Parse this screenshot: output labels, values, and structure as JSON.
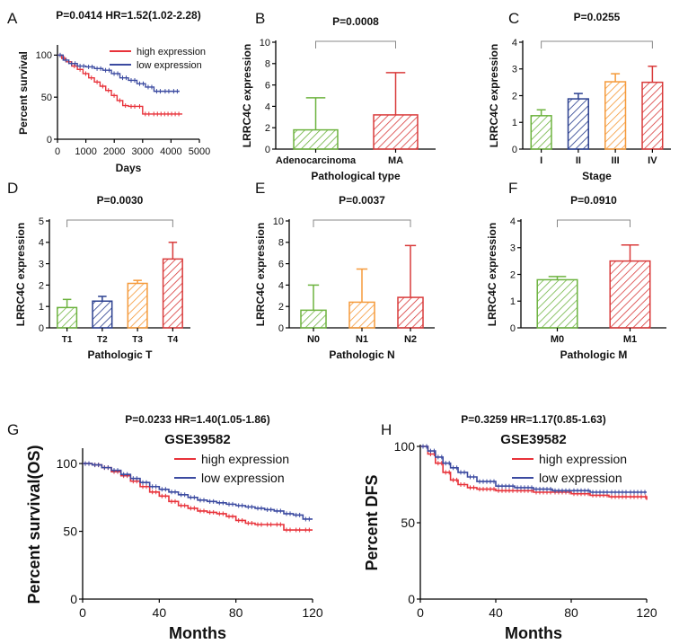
{
  "colors": {
    "green": "#6db33f",
    "blue": "#2a3f8f",
    "orange": "#f59a3a",
    "red": "#d93b3b",
    "survival_red": "#e8323a",
    "survival_blue": "#3b4aa0"
  },
  "chart_data": [
    {
      "panel": "A",
      "type": "line",
      "title": "P=0.0414  HR=1.52(1.02-2.28)",
      "xlabel": "Days",
      "ylabel": "Percent survival",
      "xlim": [
        0,
        5000
      ],
      "ylim": [
        0,
        110
      ],
      "xticks": [
        0,
        1000,
        2000,
        3000,
        4000,
        5000
      ],
      "yticks": [
        0,
        50,
        100
      ],
      "legend": "top-right",
      "series": [
        {
          "name": "high expression",
          "color": "#e8323a",
          "x": [
            0,
            150,
            300,
            500,
            700,
            900,
            1100,
            1300,
            1500,
            1700,
            1900,
            2100,
            2300,
            2500,
            2800,
            3000,
            3300,
            3800,
            4400
          ],
          "y": [
            100,
            96,
            92,
            87,
            83,
            78,
            73,
            68,
            63,
            58,
            52,
            46,
            40,
            39,
            39,
            30,
            30,
            30,
            30
          ]
        },
        {
          "name": "low expression",
          "color": "#3b4aa0",
          "x": [
            0,
            200,
            400,
            700,
            1000,
            1300,
            1600,
            1900,
            2200,
            2500,
            2800,
            3100,
            3400,
            3700,
            4000,
            4300
          ],
          "y": [
            100,
            94,
            90,
            87,
            86,
            84,
            82,
            78,
            73,
            70,
            66,
            62,
            57,
            57,
            57,
            57
          ]
        }
      ]
    },
    {
      "panel": "B",
      "type": "bar",
      "title": "P=0.0008",
      "xlabel": "Pathological type",
      "ylabel": "LRRC4C expression",
      "ylim": [
        0,
        10
      ],
      "yticks": [
        0,
        2,
        4,
        6,
        8,
        10
      ],
      "categories": [
        "Adenocarcinoma",
        "MA"
      ],
      "values": [
        1.8,
        3.2
      ],
      "errors": [
        3.0,
        3.95
      ],
      "colors": [
        "#6db33f",
        "#d93b3b"
      ],
      "bracket": [
        0,
        1
      ]
    },
    {
      "panel": "C",
      "type": "bar",
      "title": "P=0.0255",
      "xlabel": "Stage",
      "ylabel": "LRRC4C expression",
      "ylim": [
        0,
        4
      ],
      "yticks": [
        0,
        1,
        2,
        3,
        4
      ],
      "categories": [
        "I",
        "II",
        "III",
        "IV"
      ],
      "values": [
        1.25,
        1.88,
        2.52,
        2.5
      ],
      "errors": [
        0.22,
        0.2,
        0.3,
        0.6
      ],
      "colors": [
        "#6db33f",
        "#2a3f8f",
        "#f59a3a",
        "#d93b3b"
      ],
      "bracket": [
        0,
        3
      ]
    },
    {
      "panel": "D",
      "type": "bar",
      "title": "P=0.0030",
      "xlabel": "Pathologic T",
      "ylabel": "LRRC4C expression",
      "ylim": [
        0,
        5
      ],
      "yticks": [
        0,
        1,
        2,
        3,
        4,
        5
      ],
      "categories": [
        "T1",
        "T2",
        "T3",
        "T4"
      ],
      "values": [
        0.95,
        1.25,
        2.08,
        3.22
      ],
      "errors": [
        0.38,
        0.22,
        0.14,
        0.78
      ],
      "colors": [
        "#6db33f",
        "#2a3f8f",
        "#f59a3a",
        "#d93b3b"
      ],
      "bracket": [
        0,
        3
      ]
    },
    {
      "panel": "E",
      "type": "bar",
      "title": "P=0.0037",
      "xlabel": "Pathologic N",
      "ylabel": "LRRC4C expression",
      "ylim": [
        0,
        10
      ],
      "yticks": [
        0,
        2,
        4,
        6,
        8,
        10
      ],
      "categories": [
        "N0",
        "N1",
        "N2"
      ],
      "values": [
        1.65,
        2.4,
        2.85
      ],
      "errors": [
        2.35,
        3.1,
        4.85
      ],
      "colors": [
        "#6db33f",
        "#f59a3a",
        "#d93b3b"
      ],
      "bracket": [
        0,
        2
      ]
    },
    {
      "panel": "F",
      "type": "bar",
      "title": "P=0.0910",
      "xlabel": "Pathologic M",
      "ylabel": "LRRC4C expression",
      "ylim": [
        0,
        4
      ],
      "yticks": [
        0,
        1,
        2,
        3,
        4
      ],
      "categories": [
        "M0",
        "M1"
      ],
      "values": [
        1.8,
        2.5
      ],
      "errors": [
        0.12,
        0.6
      ],
      "colors": [
        "#6db33f",
        "#d93b3b"
      ],
      "bracket": [
        0,
        1
      ]
    },
    {
      "panel": "G",
      "type": "line",
      "title": "P=0.0233  HR=1.40(1.05-1.86)",
      "subtitle": "GSE39582",
      "xlabel": "Months",
      "ylabel": "Percent survival(OS)",
      "xlim": [
        0,
        120
      ],
      "ylim": [
        0,
        110
      ],
      "xticks": [
        0,
        40,
        80,
        120
      ],
      "yticks": [
        0,
        50,
        100
      ],
      "legend": "top-right",
      "series": [
        {
          "name": "high expression",
          "color": "#e8323a",
          "x": [
            0,
            5,
            10,
            15,
            20,
            25,
            30,
            35,
            40,
            45,
            50,
            55,
            60,
            65,
            70,
            75,
            80,
            85,
            90,
            95,
            100,
            105,
            110,
            115,
            120
          ],
          "y": [
            100,
            99,
            97,
            94,
            91,
            87,
            83,
            79,
            76,
            72,
            69,
            67,
            65,
            64,
            63,
            61,
            58,
            56,
            55,
            55,
            55,
            51,
            51,
            51,
            51
          ]
        },
        {
          "name": "low expression",
          "color": "#3b4aa0",
          "x": [
            0,
            5,
            10,
            15,
            20,
            25,
            30,
            35,
            40,
            45,
            50,
            55,
            60,
            65,
            70,
            75,
            80,
            85,
            90,
            95,
            100,
            105,
            110,
            115,
            120
          ],
          "y": [
            100,
            99,
            97,
            95,
            92,
            89,
            86,
            83,
            81,
            79,
            77,
            75,
            73,
            72,
            71,
            70,
            69,
            68,
            67,
            66,
            65,
            63,
            62,
            59,
            59
          ]
        }
      ]
    },
    {
      "panel": "H",
      "type": "line",
      "title": "P=0.3259  HR=1.17(0.85-1.63)",
      "subtitle": "GSE39582",
      "xlabel": "Months",
      "ylabel": "Percent DFS",
      "xlim": [
        0,
        120
      ],
      "ylim": [
        0,
        100
      ],
      "xticks": [
        0,
        40,
        80,
        120
      ],
      "yticks": [
        0,
        50,
        100
      ],
      "legend": "top-right",
      "series": [
        {
          "name": "high expression",
          "color": "#e8323a",
          "x": [
            0,
            4,
            8,
            12,
            16,
            20,
            25,
            30,
            40,
            50,
            60,
            70,
            80,
            90,
            100,
            110,
            118,
            120
          ],
          "y": [
            100,
            95,
            89,
            83,
            78,
            75,
            73,
            72,
            71,
            71,
            70,
            70,
            69,
            68,
            67,
            67,
            67,
            65
          ]
        },
        {
          "name": "low expression",
          "color": "#3b4aa0",
          "x": [
            0,
            4,
            8,
            12,
            16,
            20,
            25,
            30,
            40,
            50,
            60,
            70,
            80,
            90,
            100,
            110,
            120
          ],
          "y": [
            100,
            97,
            93,
            89,
            86,
            83,
            80,
            77,
            74,
            73,
            72,
            71,
            71,
            70,
            70,
            70,
            70
          ]
        }
      ]
    }
  ]
}
